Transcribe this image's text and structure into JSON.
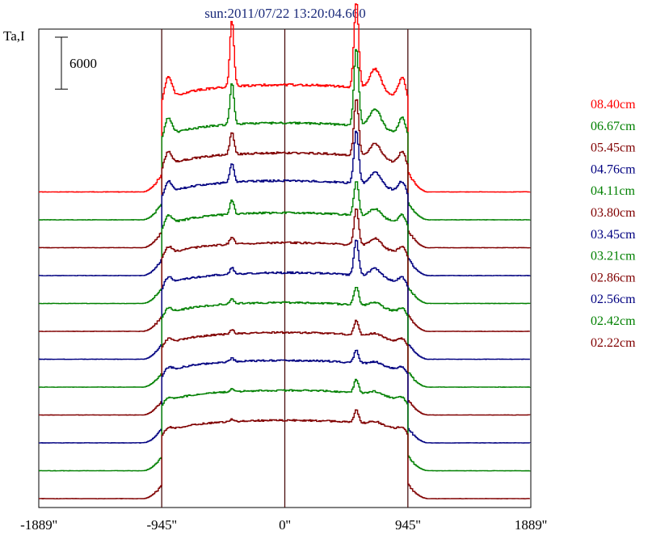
{
  "chart_data": {
    "type": "line",
    "title": "sun:2011/07/22 13:20:04.660",
    "ylabel": "Ta,I",
    "scale_bar_label": "6000",
    "scale_bar_value": 6000,
    "xlim": [
      -1889,
      1889
    ],
    "x_ticks": [
      {
        "value": -1889,
        "label": "-1889''"
      },
      {
        "value": -945,
        "label": "-945''"
      },
      {
        "value": 0,
        "label": "0''"
      },
      {
        "value": 945,
        "label": "945''"
      },
      {
        "value": 1889,
        "label": "1889''"
      }
    ],
    "vertical_lines": [
      -945,
      0,
      945
    ],
    "series": [
      {
        "name": "08.40cm",
        "color": "#ff0000",
        "offset": 14,
        "base": 26000,
        "peakL": 16000,
        "peakR": 21000,
        "shoulder": 5500
      },
      {
        "name": "06.67cm",
        "color": "#008000",
        "offset": 13,
        "base": 23500,
        "peakL": 10000,
        "peakR": 19000,
        "shoulder": 4500
      },
      {
        "name": "05.45cm",
        "color": "#800000",
        "offset": 12,
        "base": 23000,
        "peakL": 5500,
        "peakR": 14000,
        "shoulder": 3500
      },
      {
        "name": "04.76cm",
        "color": "#000080",
        "offset": 11,
        "base": 23000,
        "peakL": 4500,
        "peakR": 13000,
        "shoulder": 3000
      },
      {
        "name": "04.11cm",
        "color": "#008000",
        "offset": 10,
        "base": 22000,
        "peakL": 3500,
        "peakR": 8500,
        "shoulder": 2500
      },
      {
        "name": "03.80cm",
        "color": "#800000",
        "offset": 9,
        "base": 21500,
        "peakL": 1800,
        "peakR": 9000,
        "shoulder": 2000
      },
      {
        "name": "03.45cm",
        "color": "#000080",
        "offset": 8,
        "base": 21000,
        "peakL": 1500,
        "peakR": 8500,
        "shoulder": 1800
      },
      {
        "name": "03.21cm",
        "color": "#008000",
        "offset": 7,
        "base": 20500,
        "peakL": 1200,
        "peakR": 4500,
        "shoulder": 1500
      },
      {
        "name": "02.86cm",
        "color": "#800000",
        "offset": 6,
        "base": 20000,
        "peakL": 1000,
        "peakR": 3500,
        "shoulder": 1300
      },
      {
        "name": "02.56cm",
        "color": "#000080",
        "offset": 5,
        "base": 20000,
        "peakL": 800,
        "peakR": 3000,
        "shoulder": 1100
      },
      {
        "name": "02.42cm",
        "color": "#008000",
        "offset": 4,
        "base": 19500,
        "peakL": 600,
        "peakR": 3200,
        "shoulder": 1000
      },
      {
        "name": "02.22cm",
        "color": "#800000",
        "offset": 3,
        "base": 19000,
        "peakL": 500,
        "peakR": 3000,
        "shoulder": 900
      }
    ]
  }
}
